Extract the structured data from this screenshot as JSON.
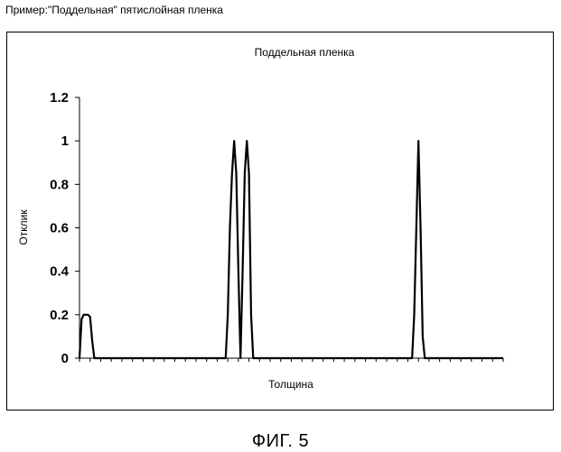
{
  "header_text": "Пример:\"Поддельная\" пятислойная пленка",
  "figure_label": "ФИГ. 5",
  "chart_data": {
    "type": "line",
    "title": "Поддельная пленка",
    "xlabel": "Толщина",
    "ylabel": "Отклик",
    "ylim": [
      0,
      1.2
    ],
    "yticks": [
      "0",
      "0.2",
      "0.4",
      "0.6",
      "0.8",
      "1",
      "1.2"
    ],
    "xlim": [
      0,
      100
    ],
    "x_tick_count": 40,
    "grid": false,
    "legend": "none",
    "series": [
      {
        "color": "#000000",
        "x": [
          0,
          0.5,
          1,
          1.5,
          2,
          2.5,
          3,
          3.5,
          34.5,
          35,
          35.5,
          36,
          36.5,
          37,
          37.5,
          38,
          38.5,
          39,
          39.5,
          40,
          40.5,
          41,
          41.5,
          42,
          42.5,
          43,
          43.5,
          78.5,
          79,
          79.5,
          80,
          80.5,
          81,
          81.5,
          100
        ],
        "y": [
          0,
          0.18,
          0.2,
          0.2,
          0.2,
          0.19,
          0.08,
          0,
          0,
          0.2,
          0.6,
          0.85,
          1,
          0.85,
          0.4,
          0,
          0.4,
          0.85,
          1,
          0.85,
          0.2,
          0,
          0,
          0,
          0,
          0,
          0,
          0,
          0.2,
          0.6,
          1,
          0.6,
          0.1,
          0,
          0
        ]
      }
    ]
  }
}
